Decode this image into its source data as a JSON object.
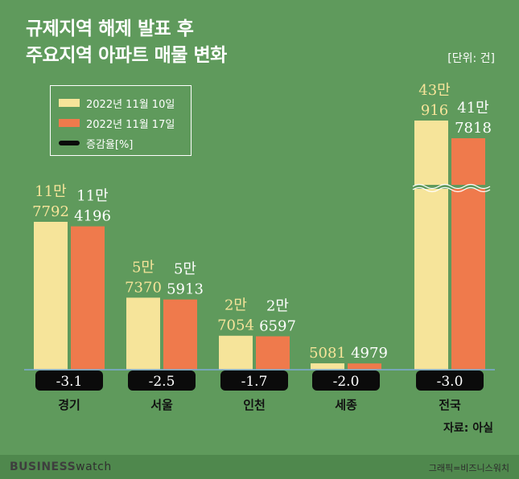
{
  "title": {
    "line1": "규제지역 해제 발표 후",
    "line2": "주요지역 아파트 매물 변화"
  },
  "unit": "[단위: 건]",
  "legend": {
    "series1": "2022년 11월 10일",
    "series2": "2022년 11월 17일",
    "change": "증감율[%]"
  },
  "colors": {
    "background": "#5f9a5c",
    "series1": "#f6e49a",
    "series2": "#ef7a4c",
    "change_box": "#0b0b0b",
    "change_text": "#ffffff",
    "series1_label": "#f6e49a",
    "series2_label": "#ffffff"
  },
  "chart_data": {
    "type": "bar",
    "categories": [
      "경기",
      "서울",
      "인천",
      "세종",
      "전국"
    ],
    "series": [
      {
        "name": "2022년 11월 10일",
        "values": [
          117792,
          57370,
          27054,
          5081,
          430916
        ],
        "labels": [
          [
            "11만",
            "7792"
          ],
          [
            "5만",
            "7370"
          ],
          [
            "2만",
            "7054"
          ],
          [
            "",
            "5081"
          ],
          [
            "43만",
            "916"
          ]
        ]
      },
      {
        "name": "2022년 11월 17일",
        "values": [
          114196,
          55913,
          26597,
          4979,
          417818
        ],
        "labels": [
          [
            "11만",
            "4196"
          ],
          [
            "5만",
            "5913"
          ],
          [
            "2만",
            "6597"
          ],
          [
            "",
            "4979"
          ],
          [
            "41만",
            "7818"
          ]
        ]
      }
    ],
    "change_pct": [
      "-3.1",
      "-2.5",
      "-1.7",
      "-2.0",
      "-3.0"
    ],
    "axis_break": "전국 bars are drawn with a broken (wavy) axis break"
  },
  "source": "자료: 아실",
  "footer": {
    "brand_bold": "BUSINESS",
    "brand_light": "watch",
    "credit": "그래픽=비즈니스워치"
  }
}
